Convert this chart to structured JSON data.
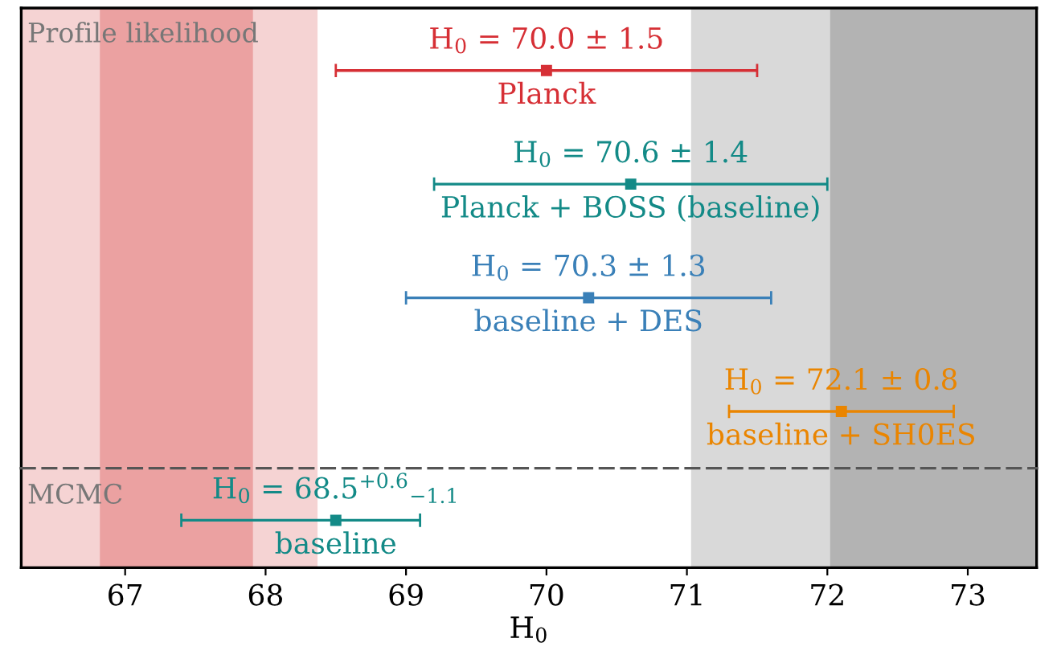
{
  "chart_data": [
    {
      "type": "scatter",
      "title": "Profile likelihood",
      "orientation": "horizontal",
      "categories": [
        "Planck",
        "Planck + BOSS (baseline)",
        "baseline + DES",
        "baseline + SH0ES"
      ],
      "series": [
        {
          "values": [
            70.0,
            70.6,
            70.3,
            72.1
          ],
          "errors": [
            1.5,
            1.4,
            1.3,
            0.8
          ],
          "colors": [
            "#d62f35",
            "#138a87",
            "#3a80b8",
            "#ea8500"
          ],
          "value_labels": [
            "H$_{0}$ = 70.0 ± 1.5",
            "H$_{0}$ = 70.6 ± 1.4",
            "H$_{0}$ = 70.3 ± 1.3",
            "H$_{0}$ = 72.1 ± 0.8"
          ]
        }
      ],
      "marker": "square",
      "xlim": [
        66.26,
        73.49
      ],
      "xticks": [
        67,
        68,
        69,
        70,
        71,
        72,
        73
      ],
      "tick_labels": false,
      "grid": false,
      "legend": false,
      "bands": [
        {
          "axis": "x",
          "from": 66.26,
          "to": 68.37,
          "color": "#f5d3d3"
        },
        {
          "axis": "x",
          "from": 66.82,
          "to": 67.91,
          "color": "#eba1a1"
        },
        {
          "axis": "x",
          "from": 71.03,
          "to": 73.49,
          "color": "#d9d9d9"
        },
        {
          "axis": "x",
          "from": 72.02,
          "to": 73.49,
          "color": "#b3b3b3"
        }
      ]
    },
    {
      "type": "scatter",
      "title": "MCMC",
      "orientation": "horizontal",
      "categories": [
        "baseline"
      ],
      "series": [
        {
          "values": [
            68.5
          ],
          "errors": [
            [
              67.4,
              69.1
            ]
          ],
          "colors": [
            "#138a87"
          ],
          "value_labels": [
            "H$_{0}$ = 68.5$^{+0.6}$$_{−1.1}$"
          ]
        }
      ],
      "marker": "square",
      "xlim": [
        66.26,
        73.49
      ],
      "xticks": [
        67,
        68,
        69,
        70,
        71,
        72,
        73
      ],
      "tick_labels": "x",
      "xlabel": "H$_{0}$",
      "grid": false,
      "legend": false,
      "bands": [
        {
          "axis": "x",
          "from": 66.26,
          "to": 68.37,
          "color": "#f5d3d3"
        },
        {
          "axis": "x",
          "from": 66.82,
          "to": 67.91,
          "color": "#eba1a1"
        },
        {
          "axis": "x",
          "from": 71.03,
          "to": 73.49,
          "color": "#d9d9d9"
        },
        {
          "axis": "x",
          "from": 72.02,
          "to": 73.49,
          "color": "#b3b3b3"
        }
      ]
    }
  ]
}
